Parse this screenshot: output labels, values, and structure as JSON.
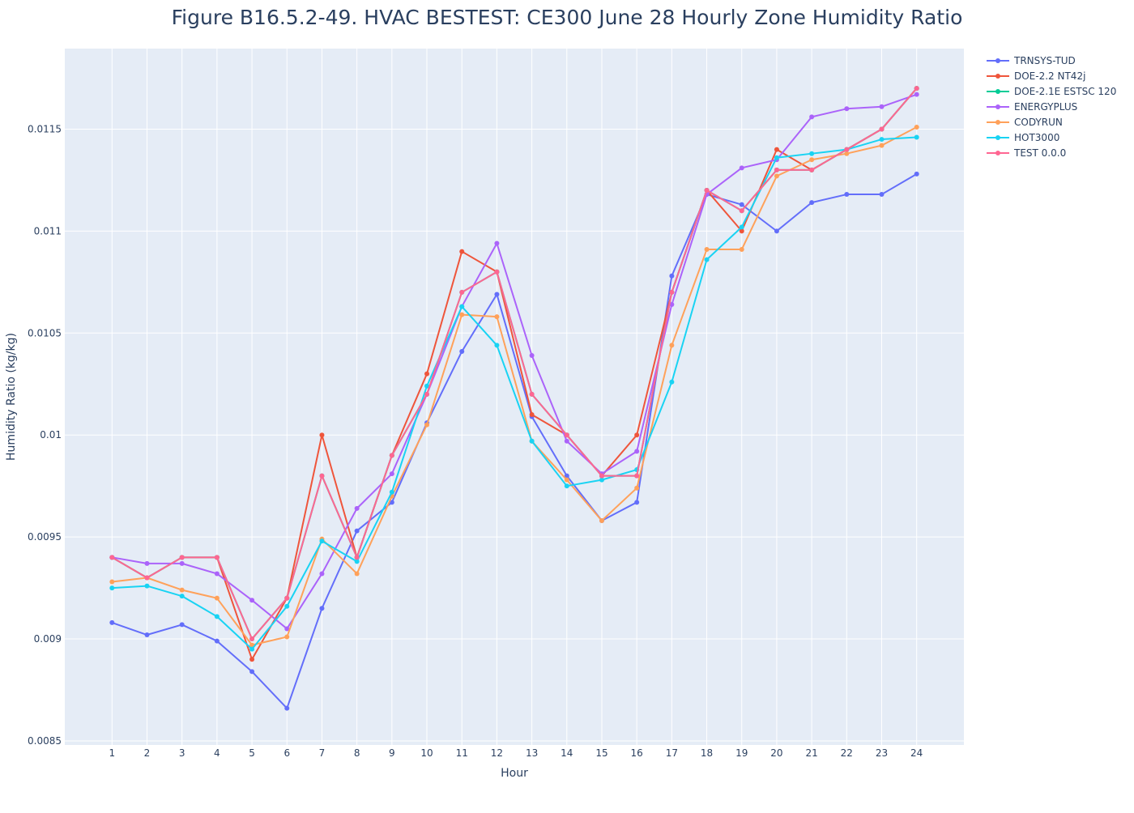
{
  "chart_data": {
    "type": "line",
    "title": "Figure B16.5.2-49. HVAC BESTEST: CE300 June 28 Hourly Zone Humidity Ratio",
    "xlabel": "Hour",
    "ylabel": "Humidity Ratio (kg/kg)",
    "x": [
      1,
      2,
      3,
      4,
      5,
      6,
      7,
      8,
      9,
      10,
      11,
      12,
      13,
      14,
      15,
      16,
      17,
      18,
      19,
      20,
      21,
      22,
      23,
      24
    ],
    "x_ticks": [
      "1",
      "2",
      "3",
      "4",
      "5",
      "6",
      "7",
      "8",
      "9",
      "10",
      "11",
      "12",
      "13",
      "14",
      "15",
      "16",
      "17",
      "18",
      "19",
      "20",
      "21",
      "22",
      "23",
      "24"
    ],
    "y_ticks": [
      "0.0085",
      "0.009",
      "0.0095",
      "0.01",
      "0.0105",
      "0.011",
      "0.0115"
    ],
    "y_tick_values": [
      0.0085,
      0.009,
      0.0095,
      0.01,
      0.0105,
      0.011,
      0.0115
    ],
    "xlim": [
      -0.35,
      25.35
    ],
    "ylim": [
      0.00848,
      0.011895
    ],
    "grid": true,
    "legend_position": "top-right",
    "series": [
      {
        "name": "TRNSYS-TUD",
        "color": "#636efa",
        "values": [
          0.00908,
          0.00902,
          0.00907,
          0.00899,
          0.00884,
          0.00866,
          0.00915,
          0.00953,
          0.00967,
          0.01006,
          0.01041,
          0.01069,
          0.01009,
          0.0098,
          0.00958,
          0.00967,
          0.01078,
          0.01118,
          0.01113,
          0.011,
          0.01114,
          0.01118,
          0.01118,
          0.01128
        ]
      },
      {
        "name": "DOE-2.2 NT42j",
        "color": "#ef553b",
        "values": [
          0.0094,
          0.0093,
          0.0094,
          0.0094,
          0.0089,
          0.0092,
          0.01,
          0.0094,
          0.0099,
          0.0103,
          0.0109,
          0.0108,
          0.0101,
          0.01,
          0.0098,
          0.01,
          0.0107,
          0.0112,
          0.011,
          0.0114,
          0.0113,
          0.0114,
          0.0115,
          0.0117
        ]
      },
      {
        "name": "DOE-2.1E ESTSC 120",
        "color": "#00cc96",
        "values": [
          0.0094,
          0.0093,
          0.0094,
          0.0094,
          0.009,
          0.0092,
          0.0098,
          0.0094,
          0.0099,
          0.0102,
          0.0107,
          0.0108,
          0.0102,
          0.01,
          0.0098,
          0.0098,
          0.0107,
          0.0112,
          0.0111,
          0.0113,
          0.0113,
          0.0114,
          0.0115,
          0.0117
        ]
      },
      {
        "name": "ENERGYPLUS",
        "color": "#ab63fa",
        "values": [
          0.0094,
          0.00937,
          0.00937,
          0.00932,
          0.00919,
          0.00905,
          0.00932,
          0.00964,
          0.00981,
          0.0102,
          0.01063,
          0.01094,
          0.01039,
          0.00997,
          0.00981,
          0.00992,
          0.01064,
          0.01118,
          0.01131,
          0.01135,
          0.01156,
          0.0116,
          0.01161,
          0.01167
        ]
      },
      {
        "name": "CODYRUN",
        "color": "#ffa15a",
        "values": [
          0.00928,
          0.0093,
          0.00924,
          0.0092,
          0.00897,
          0.00901,
          0.00949,
          0.00932,
          0.0097,
          0.01005,
          0.01059,
          0.01058,
          0.00997,
          0.00978,
          0.00958,
          0.00974,
          0.01044,
          0.01091,
          0.01091,
          0.01127,
          0.01135,
          0.01138,
          0.01142,
          0.01151
        ]
      },
      {
        "name": "HOT3000",
        "color": "#19d3f3",
        "values": [
          0.00925,
          0.00926,
          0.00921,
          0.00911,
          0.00895,
          0.00916,
          0.00948,
          0.00938,
          0.00972,
          0.01024,
          0.01063,
          0.01044,
          0.00997,
          0.00975,
          0.00978,
          0.00983,
          0.01026,
          0.01086,
          0.01102,
          0.01136,
          0.01138,
          0.0114,
          0.01145,
          0.01146
        ]
      },
      {
        "name": "TEST 0.0.0",
        "color": "#ff6692",
        "values": [
          0.0094,
          0.0093,
          0.0094,
          0.0094,
          0.009,
          0.0092,
          0.0098,
          0.0094,
          0.0099,
          0.0102,
          0.0107,
          0.0108,
          0.0102,
          0.01,
          0.0098,
          0.0098,
          0.0107,
          0.0112,
          0.0111,
          0.0113,
          0.0113,
          0.0114,
          0.0115,
          0.0117
        ]
      }
    ]
  }
}
